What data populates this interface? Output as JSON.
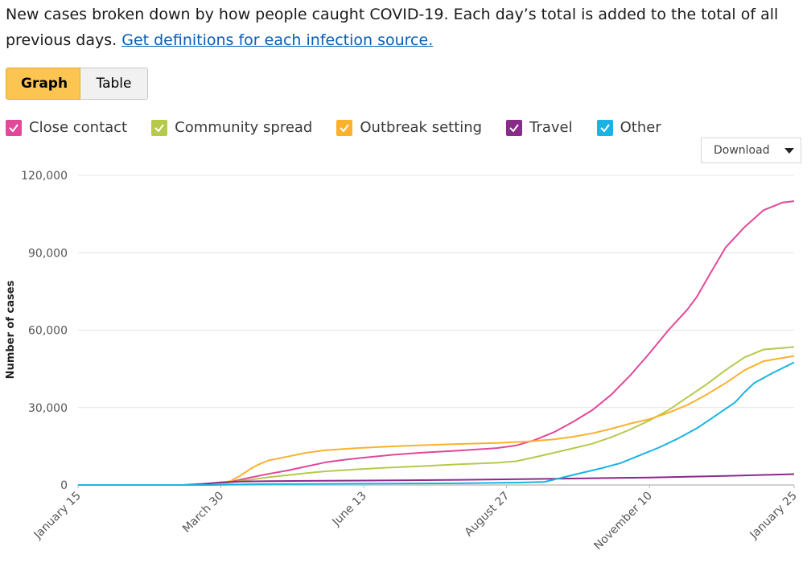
{
  "intro": {
    "text": "New cases broken down by how people caught COVID-19. Each day’s total is added to the total of all previous days.",
    "link": "Get definitions for each infection source."
  },
  "view_toggle": {
    "graph_label": "Graph",
    "table_label": "Table",
    "active": "Graph"
  },
  "download_label": "Download",
  "colors": {
    "close_contact": "#e0489a",
    "community_spread": "#b6c94a",
    "outbreak_setting": "#fbb12c",
    "travel": "#8a2a8a",
    "other": "#1ab3e3"
  },
  "chart_data": {
    "type": "line",
    "ylabel": "Number of cases",
    "ylim": [
      0,
      120000
    ],
    "y_ticks": [
      0,
      30000,
      60000,
      90000,
      120000
    ],
    "y_tick_labels": [
      "0",
      "30,000",
      "60,000",
      "90,000",
      "120,000"
    ],
    "x_tick_labels": [
      "January 15",
      "March 30",
      "June 13",
      "August 27",
      "November 10",
      "January 25"
    ],
    "x_tick_days": [
      0,
      75,
      150,
      225,
      300,
      376
    ],
    "x_range_days": [
      0,
      376
    ],
    "series": [
      {
        "name": "Close contact",
        "color": "#e0489a",
        "points": [
          [
            0,
            0
          ],
          [
            60,
            0
          ],
          [
            70,
            300
          ],
          [
            80,
            1200
          ],
          [
            90,
            2800
          ],
          [
            100,
            4300
          ],
          [
            110,
            5600
          ],
          [
            120,
            7200
          ],
          [
            130,
            8800
          ],
          [
            140,
            9800
          ],
          [
            150,
            10600
          ],
          [
            165,
            11700
          ],
          [
            180,
            12500
          ],
          [
            200,
            13300
          ],
          [
            220,
            14300
          ],
          [
            230,
            15300
          ],
          [
            240,
            17500
          ],
          [
            250,
            20500
          ],
          [
            260,
            24500
          ],
          [
            270,
            29000
          ],
          [
            280,
            35000
          ],
          [
            290,
            42500
          ],
          [
            300,
            51000
          ],
          [
            310,
            60000
          ],
          [
            320,
            68000
          ],
          [
            325,
            73000
          ],
          [
            332,
            82000
          ],
          [
            340,
            92000
          ],
          [
            350,
            100000
          ],
          [
            360,
            106500
          ],
          [
            370,
            109500
          ],
          [
            376,
            110000
          ]
        ]
      },
      {
        "name": "Community spread",
        "color": "#b6c94a",
        "points": [
          [
            0,
            0
          ],
          [
            60,
            0
          ],
          [
            70,
            300
          ],
          [
            80,
            1000
          ],
          [
            90,
            2000
          ],
          [
            100,
            3000
          ],
          [
            110,
            3800
          ],
          [
            120,
            4600
          ],
          [
            130,
            5300
          ],
          [
            145,
            6000
          ],
          [
            160,
            6600
          ],
          [
            180,
            7300
          ],
          [
            200,
            8000
          ],
          [
            220,
            8600
          ],
          [
            230,
            9200
          ],
          [
            240,
            10800
          ],
          [
            250,
            12500
          ],
          [
            260,
            14200
          ],
          [
            270,
            16000
          ],
          [
            280,
            18500
          ],
          [
            290,
            21500
          ],
          [
            300,
            25000
          ],
          [
            310,
            29000
          ],
          [
            320,
            34000
          ],
          [
            330,
            39000
          ],
          [
            340,
            44500
          ],
          [
            350,
            49500
          ],
          [
            360,
            52500
          ],
          [
            376,
            53500
          ]
        ]
      },
      {
        "name": "Outbreak setting",
        "color": "#fbb12c",
        "points": [
          [
            0,
            0
          ],
          [
            60,
            0
          ],
          [
            70,
            400
          ],
          [
            80,
            1500
          ],
          [
            85,
            3500
          ],
          [
            90,
            6000
          ],
          [
            95,
            8000
          ],
          [
            100,
            9500
          ],
          [
            110,
            11000
          ],
          [
            120,
            12500
          ],
          [
            130,
            13500
          ],
          [
            145,
            14200
          ],
          [
            160,
            14800
          ],
          [
            180,
            15400
          ],
          [
            200,
            15900
          ],
          [
            220,
            16300
          ],
          [
            235,
            16800
          ],
          [
            250,
            17700
          ],
          [
            260,
            18700
          ],
          [
            270,
            20000
          ],
          [
            280,
            21800
          ],
          [
            290,
            23800
          ],
          [
            300,
            25500
          ],
          [
            310,
            28000
          ],
          [
            320,
            31000
          ],
          [
            330,
            35000
          ],
          [
            340,
            39500
          ],
          [
            350,
            44500
          ],
          [
            360,
            48000
          ],
          [
            376,
            50000
          ]
        ]
      },
      {
        "name": "Travel",
        "color": "#8a2a8a",
        "points": [
          [
            0,
            0
          ],
          [
            55,
            0
          ],
          [
            65,
            400
          ],
          [
            75,
            1000
          ],
          [
            85,
            1300
          ],
          [
            100,
            1500
          ],
          [
            150,
            1700
          ],
          [
            200,
            2000
          ],
          [
            250,
            2400
          ],
          [
            300,
            2900
          ],
          [
            340,
            3500
          ],
          [
            376,
            4200
          ]
        ]
      },
      {
        "name": "Other",
        "color": "#1ab3e3",
        "points": [
          [
            0,
            0
          ],
          [
            70,
            0
          ],
          [
            80,
            200
          ],
          [
            100,
            350
          ],
          [
            150,
            500
          ],
          [
            200,
            650
          ],
          [
            230,
            900
          ],
          [
            245,
            1200
          ],
          [
            255,
            3000
          ],
          [
            265,
            4800
          ],
          [
            275,
            6500
          ],
          [
            285,
            8500
          ],
          [
            295,
            11500
          ],
          [
            305,
            14500
          ],
          [
            315,
            18000
          ],
          [
            325,
            22000
          ],
          [
            335,
            27000
          ],
          [
            345,
            32000
          ],
          [
            350,
            36000
          ],
          [
            355,
            39500
          ],
          [
            365,
            43500
          ],
          [
            376,
            47500
          ]
        ]
      }
    ]
  },
  "legend": {
    "items": [
      {
        "label": "Close contact",
        "color": "#e0489a"
      },
      {
        "label": "Community spread",
        "color": "#b6c94a"
      },
      {
        "label": "Outbreak setting",
        "color": "#fbb12c"
      },
      {
        "label": "Travel",
        "color": "#8a2a8a"
      },
      {
        "label": "Other",
        "color": "#1ab3e3"
      }
    ]
  }
}
